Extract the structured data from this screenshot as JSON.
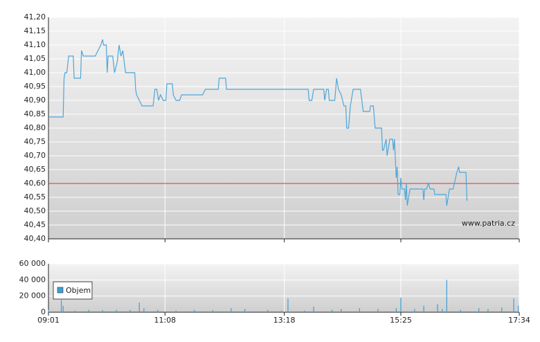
{
  "chart_data": [
    {
      "type": "line",
      "color": "#4ea6d9",
      "xlim": [
        "09:01",
        "17:34"
      ],
      "ylim": [
        40.4,
        41.2
      ],
      "yticks": [
        {
          "value": 40.4,
          "label": "40,40"
        },
        {
          "value": 40.45,
          "label": "40,45"
        },
        {
          "value": 40.5,
          "label": "40,50"
        },
        {
          "value": 40.55,
          "label": "40,55"
        },
        {
          "value": 40.6,
          "label": "40,60"
        },
        {
          "value": 40.65,
          "label": "40,65"
        },
        {
          "value": 40.7,
          "label": "40,70"
        },
        {
          "value": 40.75,
          "label": "40,75"
        },
        {
          "value": 40.8,
          "label": "40,80"
        },
        {
          "value": 40.85,
          "label": "40,85"
        },
        {
          "value": 40.9,
          "label": "40,90"
        },
        {
          "value": 40.95,
          "label": "40,95"
        },
        {
          "value": 41.0,
          "label": "41,00"
        },
        {
          "value": 41.05,
          "label": "41,05"
        },
        {
          "value": 41.1,
          "label": "41,10"
        },
        {
          "value": 41.15,
          "label": "41,15"
        },
        {
          "value": 41.2,
          "label": "41,20"
        }
      ],
      "reference_line": 40.6,
      "reference_color": "#e03030",
      "annotation": "www.patria.cz",
      "x": [
        "09:01",
        "09:17",
        "09:18",
        "09:19",
        "09:21",
        "09:23",
        "09:28",
        "09:29",
        "09:36",
        "09:37",
        "09:39",
        "09:52",
        "09:55",
        "09:58",
        "10:00",
        "10:01",
        "10:04",
        "10:05",
        "10:06",
        "10:11",
        "10:13",
        "10:16",
        "10:18",
        "10:20",
        "10:22",
        "10:25",
        "10:35",
        "10:36",
        "10:37",
        "10:40",
        "10:43",
        "10:55",
        "10:57",
        "10:59",
        "11:01",
        "11:03",
        "11:06",
        "11:09",
        "11:10",
        "11:16",
        "11:17",
        "11:20",
        "11:24",
        "11:26",
        "11:49",
        "11:52",
        "12:06",
        "12:07",
        "12:14",
        "12:15",
        "13:44",
        "13:45",
        "13:48",
        "13:50",
        "14:01",
        "14:02",
        "14:04",
        "14:06",
        "14:07",
        "14:13",
        "14:15",
        "14:17",
        "14:20",
        "14:23",
        "14:25",
        "14:26",
        "14:28",
        "14:30",
        "14:33",
        "14:41",
        "14:44",
        "14:51",
        "14:52",
        "14:55",
        "14:57",
        "15:04",
        "15:05",
        "15:06",
        "15:09",
        "15:10",
        "15:13",
        "15:16",
        "15:17",
        "15:18",
        "15:20",
        "15:21",
        "15:22",
        "15:24",
        "15:25",
        "15:26",
        "15:29",
        "15:30",
        "15:31",
        "15:32",
        "15:34",
        "15:35",
        "15:49",
        "15:50",
        "15:51",
        "15:53",
        "15:55",
        "15:57",
        "16:01",
        "16:02",
        "16:14",
        "16:15",
        "16:18",
        "16:22",
        "16:26",
        "16:28",
        "16:29",
        "16:36",
        "16:37",
        "16:38"
      ],
      "values": [
        40.84,
        40.84,
        40.98,
        41.0,
        41.0,
        41.06,
        41.06,
        40.98,
        40.98,
        41.08,
        41.06,
        41.06,
        41.08,
        41.1,
        41.12,
        41.1,
        41.1,
        41.0,
        41.06,
        41.06,
        41.0,
        41.04,
        41.1,
        41.06,
        41.08,
        41.0,
        41.0,
        40.94,
        40.92,
        40.9,
        40.88,
        40.88,
        40.94,
        40.94,
        40.9,
        40.92,
        40.9,
        40.9,
        40.96,
        40.96,
        40.92,
        40.9,
        40.9,
        40.92,
        40.92,
        40.94,
        40.94,
        40.98,
        40.98,
        40.94,
        40.94,
        40.9,
        40.9,
        40.94,
        40.94,
        40.9,
        40.94,
        40.94,
        40.9,
        40.9,
        40.98,
        40.94,
        40.92,
        40.88,
        40.88,
        40.8,
        40.8,
        40.88,
        40.94,
        40.94,
        40.86,
        40.86,
        40.88,
        40.88,
        40.8,
        40.8,
        40.72,
        40.72,
        40.76,
        40.7,
        40.76,
        40.76,
        40.72,
        40.76,
        40.62,
        40.66,
        40.56,
        40.56,
        40.62,
        40.58,
        40.58,
        40.54,
        40.6,
        40.52,
        40.56,
        40.58,
        40.58,
        40.54,
        40.58,
        40.58,
        40.6,
        40.58,
        40.58,
        40.56,
        40.56,
        40.52,
        40.58,
        40.58,
        40.64,
        40.66,
        40.64,
        40.64,
        40.54,
        40.54
      ]
    },
    {
      "type": "bar",
      "color": "#3b9fd6",
      "xlim": [
        "09:01",
        "17:34"
      ],
      "xticks": [
        "09:01",
        "11:08",
        "13:18",
        "15:25",
        "17:34"
      ],
      "ylim": [
        0,
        60000
      ],
      "yticks": [
        0,
        {
          "value": 20000,
          "label": "20 000"
        },
        {
          "value": 40000,
          "label": "40 000"
        },
        {
          "value": 60000,
          "label": "60 000"
        }
      ],
      "series": [
        {
          "name": "Objem",
          "color": "#3b9fd6",
          "x": [
            "09:01",
            "09:15",
            "09:17",
            "09:30",
            "09:45",
            "10:00",
            "10:15",
            "10:30",
            "10:40",
            "10:45",
            "11:00",
            "11:20",
            "11:40",
            "12:00",
            "12:20",
            "12:35",
            "13:00",
            "13:15",
            "13:22",
            "13:40",
            "13:50",
            "14:10",
            "14:20",
            "14:40",
            "15:00",
            "15:20",
            "15:25",
            "15:40",
            "15:50",
            "16:05",
            "16:10",
            "16:15",
            "16:30",
            "16:50",
            "17:00",
            "17:15",
            "17:28",
            "17:33"
          ],
          "values": [
            3000,
            15000,
            8000,
            2000,
            3000,
            2500,
            3000,
            3000,
            12000,
            5000,
            3000,
            2000,
            3000,
            2500,
            5000,
            4000,
            3000,
            2000,
            17000,
            2000,
            7000,
            3000,
            4000,
            5000,
            4000,
            5000,
            18000,
            4000,
            8000,
            10000,
            4000,
            40000,
            3000,
            5000,
            4000,
            6000,
            17000,
            8000
          ]
        }
      ]
    }
  ]
}
